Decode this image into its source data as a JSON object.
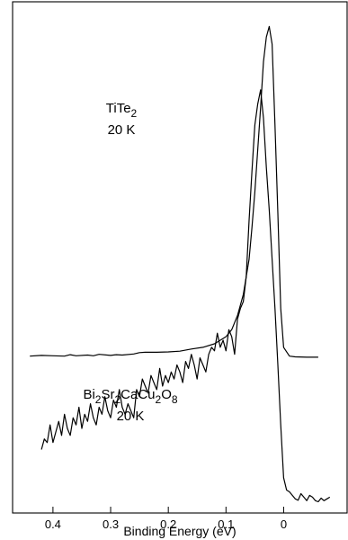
{
  "chart_data": {
    "type": "line",
    "title": "",
    "xlabel": "Binding Energy (eV)",
    "ylabel": "",
    "x_reversed": true,
    "xlim": [
      0.47,
      -0.11
    ],
    "ylim": [
      0,
      1.45
    ],
    "grid": false,
    "legend": "none",
    "x_ticks": [
      0.4,
      0.3,
      0.2,
      0.1,
      0
    ],
    "x_tick_labels": [
      "0.4",
      "0.3",
      "0.2",
      "0.1",
      "0"
    ],
    "annotations": [
      {
        "id": "tite2",
        "lines": [
          [
            {
              "t": "TiTe",
              "sub": false
            },
            {
              "t": "2",
              "sub": true
            }
          ],
          [
            {
              "t": "20 K",
              "sub": false
            }
          ]
        ]
      },
      {
        "id": "bi2212",
        "lines": [
          [
            {
              "t": "Bi",
              "sub": false
            },
            {
              "t": "2",
              "sub": true
            },
            {
              "t": "Sr",
              "sub": false
            },
            {
              "t": "2",
              "sub": true
            },
            {
              "t": "CaCu",
              "sub": false
            },
            {
              "t": "2",
              "sub": true
            },
            {
              "t": "O",
              "sub": false
            },
            {
              "t": "8",
              "sub": true
            }
          ],
          [
            {
              "t": "20 K",
              "sub": false
            }
          ]
        ]
      }
    ],
    "series": [
      {
        "id": "tite2",
        "color": "#000000",
        "x": [
          0.44,
          0.42,
          0.4,
          0.38,
          0.37,
          0.36,
          0.34,
          0.33,
          0.32,
          0.3,
          0.29,
          0.28,
          0.26,
          0.25,
          0.24,
          0.22,
          0.2,
          0.18,
          0.16,
          0.14,
          0.12,
          0.1,
          0.09,
          0.08,
          0.07,
          0.06,
          0.055,
          0.05,
          0.045,
          0.04,
          0.035,
          0.03,
          0.025,
          0.02,
          0.015,
          0.01,
          0.005,
          0.0,
          -0.01,
          -0.02,
          -0.04,
          -0.06
        ],
        "y": [
          0.445,
          0.447,
          0.446,
          0.445,
          0.449,
          0.446,
          0.448,
          0.446,
          0.45,
          0.447,
          0.449,
          0.448,
          0.451,
          0.455,
          0.456,
          0.456,
          0.457,
          0.459,
          0.465,
          0.47,
          0.48,
          0.5,
          0.52,
          0.56,
          0.62,
          0.72,
          0.81,
          0.91,
          1.03,
          1.15,
          1.28,
          1.35,
          1.38,
          1.33,
          1.1,
          0.85,
          0.58,
          0.47,
          0.445,
          0.443,
          0.442,
          0.442
        ]
      },
      {
        "id": "bi2212",
        "color": "#000000",
        "x": [
          0.42,
          0.415,
          0.41,
          0.405,
          0.4,
          0.395,
          0.39,
          0.385,
          0.38,
          0.375,
          0.37,
          0.365,
          0.36,
          0.355,
          0.35,
          0.345,
          0.34,
          0.335,
          0.33,
          0.325,
          0.32,
          0.315,
          0.31,
          0.305,
          0.3,
          0.295,
          0.29,
          0.285,
          0.28,
          0.275,
          0.27,
          0.265,
          0.26,
          0.255,
          0.25,
          0.245,
          0.24,
          0.235,
          0.23,
          0.225,
          0.22,
          0.215,
          0.21,
          0.205,
          0.2,
          0.195,
          0.19,
          0.185,
          0.18,
          0.175,
          0.17,
          0.165,
          0.16,
          0.155,
          0.15,
          0.145,
          0.14,
          0.135,
          0.13,
          0.125,
          0.12,
          0.115,
          0.11,
          0.105,
          0.1,
          0.095,
          0.09,
          0.085,
          0.08,
          0.075,
          0.07,
          0.065,
          0.06,
          0.055,
          0.05,
          0.045,
          0.04,
          0.035,
          0.03,
          0.025,
          0.02,
          0.015,
          0.01,
          0.005,
          0.0,
          -0.005,
          -0.01,
          -0.015,
          -0.02,
          -0.025,
          -0.03,
          -0.035,
          -0.04,
          -0.045,
          -0.05,
          -0.055,
          -0.06,
          -0.065,
          -0.07,
          -0.075,
          -0.08
        ],
        "y": [
          0.18,
          0.21,
          0.2,
          0.25,
          0.2,
          0.23,
          0.26,
          0.22,
          0.28,
          0.24,
          0.22,
          0.27,
          0.25,
          0.3,
          0.24,
          0.28,
          0.26,
          0.31,
          0.27,
          0.25,
          0.3,
          0.28,
          0.33,
          0.29,
          0.27,
          0.32,
          0.3,
          0.35,
          0.3,
          0.28,
          0.31,
          0.29,
          0.27,
          0.35,
          0.33,
          0.38,
          0.36,
          0.34,
          0.39,
          0.37,
          0.35,
          0.41,
          0.36,
          0.39,
          0.37,
          0.4,
          0.38,
          0.42,
          0.4,
          0.37,
          0.43,
          0.41,
          0.45,
          0.42,
          0.38,
          0.44,
          0.42,
          0.4,
          0.45,
          0.47,
          0.46,
          0.51,
          0.47,
          0.49,
          0.46,
          0.52,
          0.5,
          0.45,
          0.55,
          0.58,
          0.6,
          0.67,
          0.83,
          0.97,
          1.1,
          1.16,
          1.2,
          1.12,
          0.98,
          0.86,
          0.72,
          0.58,
          0.42,
          0.25,
          0.1,
          0.065,
          0.06,
          0.05,
          0.04,
          0.036,
          0.055,
          0.045,
          0.035,
          0.05,
          0.045,
          0.035,
          0.032,
          0.042,
          0.035,
          0.04,
          0.045
        ]
      }
    ]
  }
}
